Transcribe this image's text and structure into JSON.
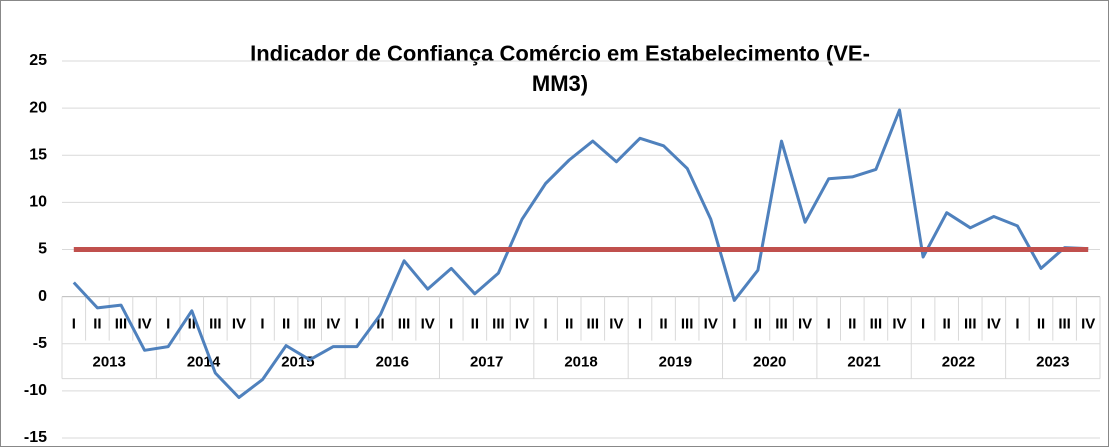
{
  "chart_data": {
    "type": "line",
    "title": [
      "Indicador de Confiança Comércio em Estabelecimento (VE-",
      "MM3)"
    ],
    "categories": [
      "I",
      "II",
      "III",
      "IV",
      "I",
      "II",
      "III",
      "IV",
      "I",
      "II",
      "III",
      "IV",
      "I",
      "II",
      "III",
      "IV",
      "I",
      "II",
      "III",
      "IV",
      "I",
      "II",
      "III",
      "IV",
      "I",
      "II",
      "III",
      "IV",
      "I",
      "II",
      "III",
      "IV",
      "I",
      "II",
      "III",
      "IV",
      "I",
      "II",
      "III",
      "IV",
      "I",
      "II",
      "III",
      "IV"
    ],
    "category_groups": [
      "2013",
      "2014",
      "2015",
      "2016",
      "2017",
      "2018",
      "2019",
      "2020",
      "2021",
      "2022",
      "2023"
    ],
    "series": [
      {
        "color": "#4f81bd",
        "values": [
          1.5,
          -1.2,
          -0.9,
          -5.7,
          -5.3,
          -1.5,
          -8.1,
          -10.7,
          -8.8,
          -5.2,
          -6.7,
          -5.3,
          -5.3,
          -1.9,
          3.8,
          0.8,
          3.0,
          0.3,
          2.5,
          8.2,
          12.0,
          14.5,
          16.5,
          14.3,
          16.8,
          16.0,
          13.6,
          8.2,
          -0.4,
          2.8,
          16.5,
          7.9,
          12.5,
          12.7,
          13.5,
          19.8,
          4.2,
          8.9,
          7.3,
          8.5,
          7.5,
          3.0,
          5.2,
          5.1
        ]
      },
      {
        "color": "#c0504d",
        "values": [
          5,
          5,
          5,
          5,
          5,
          5,
          5,
          5,
          5,
          5,
          5,
          5,
          5,
          5,
          5,
          5,
          5,
          5,
          5,
          5,
          5,
          5,
          5,
          5,
          5,
          5,
          5,
          5,
          5,
          5,
          5,
          5,
          5,
          5,
          5,
          5,
          5,
          5,
          5,
          5,
          5,
          5,
          5,
          5
        ]
      }
    ],
    "ylim": [
      -15,
      25
    ],
    "yticks": [
      -15,
      -10,
      -5,
      0,
      5,
      10,
      15,
      20,
      25
    ],
    "grid": true
  }
}
